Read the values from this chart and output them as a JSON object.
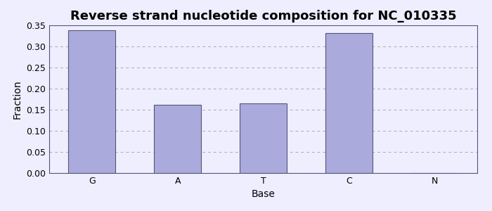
{
  "title": "Reverse strand nucleotide composition for NC_010335",
  "xlabel": "Base",
  "ylabel": "Fraction",
  "categories": [
    "G",
    "A",
    "T",
    "C",
    "N"
  ],
  "values": [
    0.338,
    0.161,
    0.165,
    0.332,
    0.0
  ],
  "bar_color": "#aaaadd",
  "bar_edgecolor": "#555577",
  "ylim": [
    0.0,
    0.35
  ],
  "yticks": [
    0.0,
    0.05,
    0.1,
    0.15,
    0.2,
    0.25,
    0.3,
    0.35
  ],
  "grid_color": "#aaaaaa",
  "grid_linestyle": "dashed",
  "title_fontsize": 13,
  "axis_label_fontsize": 10,
  "tick_fontsize": 9,
  "bg_color": "#eeeeff",
  "plot_bg_color": "#eeeeff",
  "spine_color": "#555577"
}
